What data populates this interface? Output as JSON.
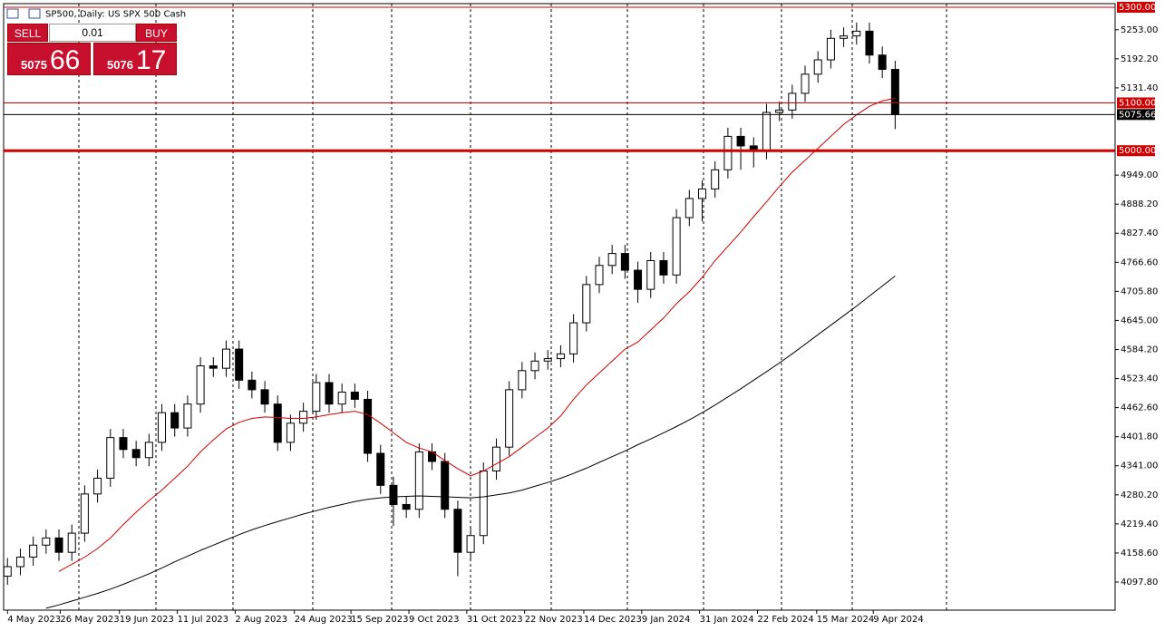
{
  "chart_data": {
    "type": "candlestick",
    "title": "SP500, Daily: US SPX 500 Cash",
    "trade_panel": {
      "sell": "SELL",
      "buy": "BUY",
      "volume": "0.01",
      "bid_big": "5075",
      "bid_small": "66",
      "ask_big": "5076",
      "ask_small": "17"
    },
    "xlim": [
      -0.3,
      86.1
    ],
    "ylim": [
      4039,
      5307.6
    ],
    "xticks": [
      {
        "value": 0,
        "label": "4 May 2023"
      },
      {
        "value": 4.1,
        "label": "26 May 2023"
      },
      {
        "value": 8.7,
        "label": "19 Jun 2023"
      },
      {
        "value": 13.2,
        "label": "11 Jul 2023"
      },
      {
        "value": 17.7,
        "label": "2 Aug 2023"
      },
      {
        "value": 22.3,
        "label": "24 Aug 2023"
      },
      {
        "value": 26.7,
        "label": "15 Sep 2023"
      },
      {
        "value": 31.2,
        "label": "9 Oct 2023"
      },
      {
        "value": 35.7,
        "label": "31 Oct 2023"
      },
      {
        "value": 40.2,
        "label": "22 Nov 2023"
      },
      {
        "value": 44.8,
        "label": "14 Dec 2023"
      },
      {
        "value": 49.3,
        "label": "9 Jan 2024"
      },
      {
        "value": 53.8,
        "label": "31 Jan 2024"
      },
      {
        "value": 58.3,
        "label": "22 Feb 2024"
      },
      {
        "value": 62.9,
        "label": "15 Mar 2024"
      },
      {
        "value": 67.3,
        "label": "9 Apr 2024"
      }
    ],
    "yticks": [
      {
        "value": 5253,
        "label": "5253.00"
      },
      {
        "value": 5192.2,
        "label": "5192.20"
      },
      {
        "value": 5131.4,
        "label": "5131.40"
      },
      {
        "value": 4949,
        "label": "4949.00"
      },
      {
        "value": 4888.2,
        "label": "4888.20"
      },
      {
        "value": 4827.4,
        "label": "4827.40"
      },
      {
        "value": 4766.6,
        "label": "4766.60"
      },
      {
        "value": 4705.8,
        "label": "4705.80"
      },
      {
        "value": 4645,
        "label": "4645.00"
      },
      {
        "value": 4584.2,
        "label": "4584.20"
      },
      {
        "value": 4523.4,
        "label": "4523.40"
      },
      {
        "value": 4462.6,
        "label": "4462.60"
      },
      {
        "value": 4401.8,
        "label": "4401.80"
      },
      {
        "value": 4341,
        "label": "4341.00"
      },
      {
        "value": 4280.2,
        "label": "4280.20"
      },
      {
        "value": 4219.4,
        "label": "4219.40"
      },
      {
        "value": 4158.6,
        "label": "4158.60"
      },
      {
        "value": 4097.8,
        "label": "4097.80"
      }
    ],
    "hlines": [
      {
        "value": 5300,
        "label": "5300.00",
        "color": "#d00000",
        "style": "thin"
      },
      {
        "value": 5100,
        "label": "5100.00",
        "color": "#d00000",
        "style": "thin"
      },
      {
        "value": 5000,
        "label": "5000.00",
        "color": "#d00000",
        "style": "thick"
      },
      {
        "value": 5075.66,
        "label": "5075.66",
        "color": "#000000",
        "style": "thin"
      }
    ],
    "candles": {
      "open": [
        4110,
        4130,
        4150,
        4175,
        4190,
        4160,
        4200,
        4282,
        4315,
        4400,
        4375,
        4358,
        4390,
        4452,
        4420,
        4470,
        4550,
        4545,
        4585,
        4520,
        4500,
        4470,
        4390,
        4430,
        4455,
        4515,
        4470,
        4495,
        4480,
        4367,
        4300,
        4260,
        4250,
        4370,
        4350,
        4250,
        4160,
        4195,
        4330,
        4380,
        4500,
        4540,
        4560,
        4565,
        4575,
        4640,
        4720,
        4760,
        4785,
        4750,
        4710,
        4770,
        4740,
        4860,
        4900,
        4920,
        4960,
        5030,
        5010,
        5000,
        5080,
        5085,
        5120,
        5160,
        5190,
        5235,
        5240,
        5250,
        5200,
        5170
      ],
      "high": [
        4148,
        4168,
        4193,
        4208,
        4208,
        4218,
        4300,
        4333,
        4418,
        4418,
        4393,
        4408,
        4470,
        4470,
        4488,
        4568,
        4568,
        4603,
        4603,
        4538,
        4518,
        4488,
        4448,
        4473,
        4533,
        4533,
        4513,
        4513,
        4498,
        4385,
        4318,
        4278,
        4388,
        4388,
        4368,
        4268,
        4213,
        4348,
        4398,
        4518,
        4558,
        4578,
        4583,
        4593,
        4658,
        4738,
        4778,
        4803,
        4803,
        4768,
        4788,
        4788,
        4878,
        4918,
        4938,
        4978,
        5048,
        5048,
        5028,
        5098,
        5103,
        5138,
        5178,
        5208,
        5253,
        5258,
        5268,
        5268,
        5218,
        5188
      ],
      "low": [
        4092,
        4112,
        4132,
        4157,
        4142,
        4142,
        4182,
        4264,
        4297,
        4357,
        4340,
        4340,
        4372,
        4402,
        4402,
        4452,
        4527,
        4527,
        4502,
        4482,
        4452,
        4372,
        4372,
        4412,
        4437,
        4452,
        4452,
        4462,
        4349,
        4282,
        4215,
        4232,
        4232,
        4332,
        4232,
        4110,
        4142,
        4177,
        4312,
        4362,
        4482,
        4522,
        4542,
        4547,
        4557,
        4622,
        4702,
        4742,
        4732,
        4682,
        4692,
        4722,
        4722,
        4842,
        4852,
        4902,
        4942,
        4960,
        4965,
        4982,
        5062,
        5067,
        5102,
        5142,
        5172,
        5217,
        5222,
        5182,
        5152,
        5045
      ],
      "close": [
        4130,
        4150,
        4175,
        4190,
        4160,
        4200,
        4282,
        4315,
        4400,
        4375,
        4358,
        4390,
        4452,
        4420,
        4470,
        4550,
        4545,
        4585,
        4520,
        4500,
        4470,
        4390,
        4430,
        4455,
        4515,
        4470,
        4495,
        4480,
        4367,
        4300,
        4260,
        4250,
        4370,
        4350,
        4250,
        4160,
        4195,
        4330,
        4380,
        4500,
        4540,
        4560,
        4565,
        4575,
        4640,
        4720,
        4760,
        4785,
        4750,
        4710,
        4770,
        4740,
        4860,
        4900,
        4920,
        4960,
        5030,
        5010,
        5000,
        5080,
        5085,
        5120,
        5160,
        5190,
        5235,
        5240,
        5250,
        5200,
        5170,
        5075.66
      ]
    },
    "lines": [
      {
        "color": "#d00000",
        "values": [
          null,
          null,
          null,
          null,
          4120,
          4135,
          4150,
          4168,
          4190,
          4218,
          4244,
          4268,
          4290,
          4315,
          4340,
          4370,
          4395,
          4418,
          4432,
          4440,
          4443,
          4442,
          4440,
          4440,
          4443,
          4448,
          4452,
          4455,
          4448,
          4430,
          4410,
          4390,
          4378,
          4370,
          4352,
          4335,
          4320,
          4330,
          4345,
          4360,
          4380,
          4400,
          4420,
          4445,
          4480,
          4510,
          4535,
          4560,
          4585,
          4600,
          4625,
          4650,
          4680,
          4705,
          4735,
          4770,
          4800,
          4830,
          4862,
          4893,
          4925,
          4955,
          4980,
          5005,
          5030,
          5055,
          5075,
          5093,
          5104,
          5110
        ]
      },
      {
        "color": "#000000",
        "values": [
          null,
          null,
          null,
          4043,
          4050,
          4058,
          4066,
          4074,
          4083,
          4093,
          4104,
          4115,
          4127,
          4140,
          4152,
          4164,
          4175,
          4186,
          4197,
          4207,
          4216,
          4224,
          4232,
          4240,
          4247,
          4254,
          4260,
          4266,
          4271,
          4274,
          4276,
          4277,
          4278,
          4277,
          4276,
          4275,
          4274,
          4276,
          4280,
          4284,
          4290,
          4298,
          4306,
          4315,
          4325,
          4336,
          4348,
          4360,
          4372,
          4385,
          4397,
          4410,
          4423,
          4437,
          4452,
          4468,
          4485,
          4502,
          4520,
          4538,
          4556,
          4575,
          4595,
          4615,
          4635,
          4655,
          4675,
          4696,
          4717,
          4738
        ]
      }
    ]
  }
}
